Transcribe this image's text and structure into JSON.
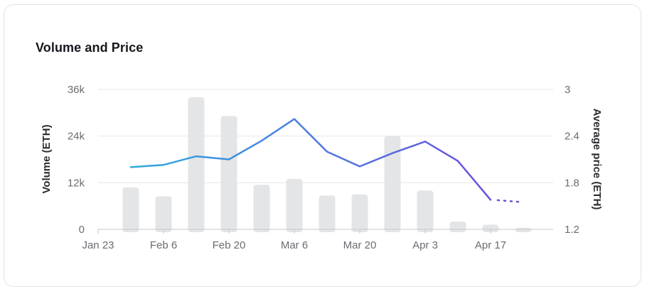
{
  "card": {
    "title": "Volume and Price"
  },
  "chart_data": {
    "type": "bar+line",
    "title": "Volume and Price",
    "xlabel": "",
    "ylabel_left": "Volume (ETH)",
    "ylabel_right": "Average price (ETH)",
    "x_ticks": [
      "Jan 23",
      "Feb 6",
      "Feb 20",
      "Mar 6",
      "Mar 20",
      "Apr 3",
      "Apr 17"
    ],
    "y_left": {
      "ticks": [
        "0",
        "12k",
        "24k",
        "36k"
      ],
      "ylim": [
        0,
        36000
      ]
    },
    "y_right": {
      "ticks": [
        "1.2",
        "1.8",
        "2.4",
        "3"
      ],
      "ylim": [
        1.2,
        3.0
      ]
    },
    "grid": true,
    "x": [
      "Jan 30",
      "Feb 6",
      "Feb 13",
      "Feb 20",
      "Feb 27",
      "Mar 6",
      "Mar 13",
      "Mar 20",
      "Mar 27",
      "Apr 3",
      "Apr 10",
      "Apr 17",
      "Apr 24"
    ],
    "series": [
      {
        "type": "bar",
        "axis": "left",
        "values": [
          10800,
          8500,
          34000,
          29200,
          11500,
          13000,
          8700,
          9000,
          24000,
          10000,
          2000,
          1200,
          400
        ],
        "color": "#e4e5e7"
      },
      {
        "type": "line",
        "axis": "right",
        "values": [
          2.0,
          2.03,
          2.14,
          2.1,
          2.34,
          2.62,
          2.2,
          2.01,
          2.18,
          2.33,
          2.08,
          1.58,
          null
        ],
        "projected": {
          "from": "Apr 17",
          "to": "Apr 24",
          "value": 1.55,
          "style": "dotted"
        },
        "gradient": [
          "#2fa9dc",
          "#6a4fe0"
        ]
      }
    ]
  }
}
